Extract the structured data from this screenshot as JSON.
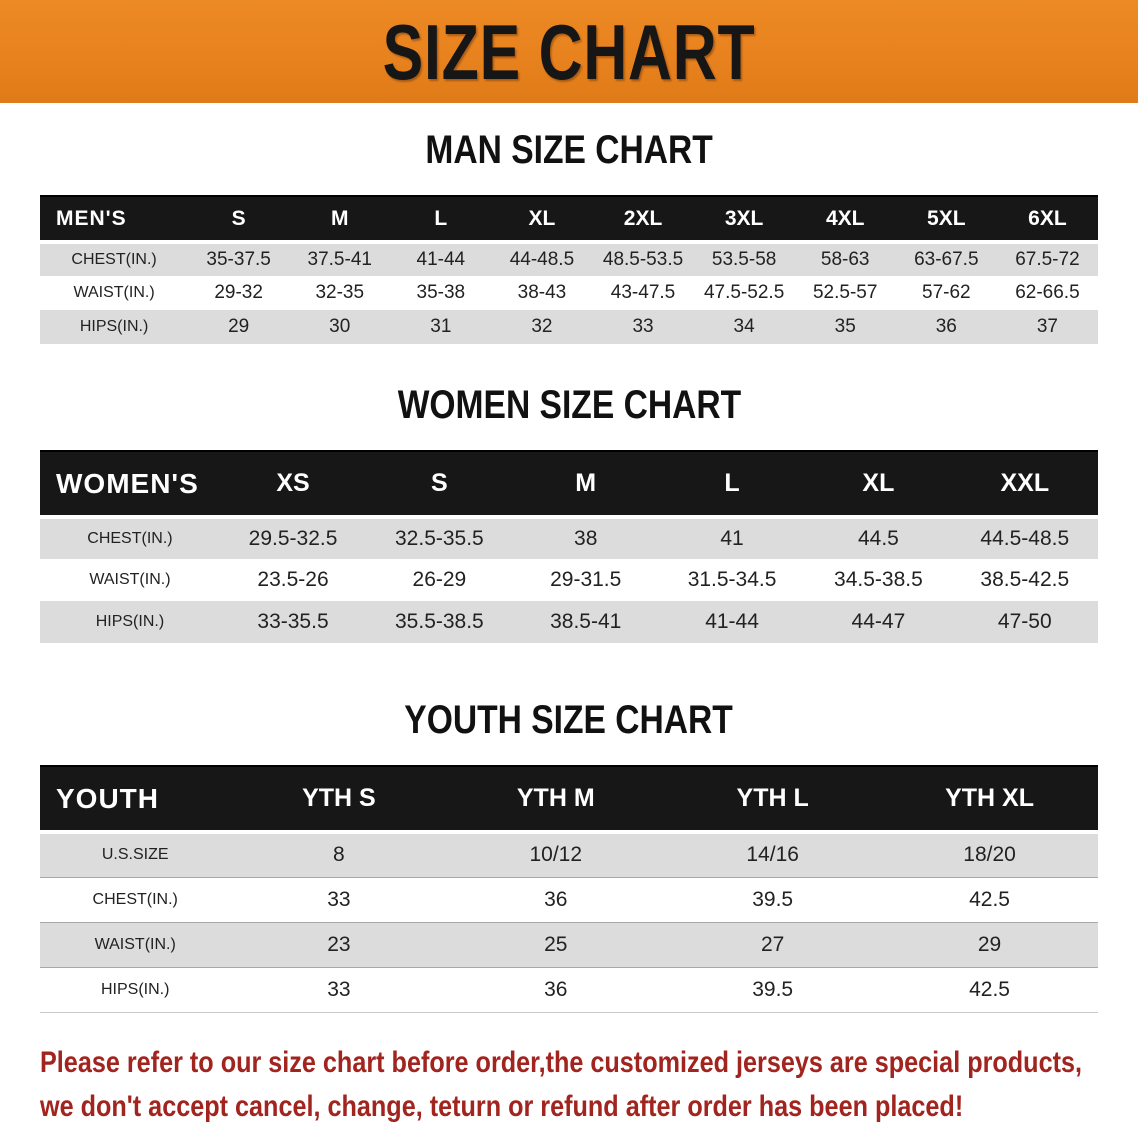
{
  "banner": {
    "title": "SIZE CHART",
    "bg_color": "#E8821E",
    "text_color": "#161616"
  },
  "sections": {
    "men": {
      "heading": "MAN SIZE CHART",
      "table": {
        "columns": [
          "MEN'S",
          "S",
          "M",
          "L",
          "XL",
          "2XL",
          "3XL",
          "4XL",
          "5XL",
          "6XL"
        ],
        "rows": [
          {
            "label": "CHEST(IN.)",
            "values": [
              "35-37.5",
              "37.5-41",
              "41-44",
              "44-48.5",
              "48.5-53.5",
              "53.5-58",
              "58-63",
              "63-67.5",
              "67.5-72"
            ]
          },
          {
            "label": "WAIST(IN.)",
            "values": [
              "29-32",
              "32-35",
              "35-38",
              "38-43",
              "43-47.5",
              "47.5-52.5",
              "52.5-57",
              "57-62",
              "62-66.5"
            ]
          },
          {
            "label": "HIPS(IN.)",
            "values": [
              "29",
              "30",
              "31",
              "32",
              "33",
              "34",
              "35",
              "36",
              "37"
            ]
          }
        ]
      }
    },
    "women": {
      "heading": "WOMEN SIZE CHART",
      "table": {
        "columns": [
          "WOMEN'S",
          "XS",
          "S",
          "M",
          "L",
          "XL",
          "XXL"
        ],
        "rows": [
          {
            "label": "CHEST(IN.)",
            "values": [
              "29.5-32.5",
              "32.5-35.5",
              "38",
              "41",
              "44.5",
              "44.5-48.5"
            ]
          },
          {
            "label": "WAIST(IN.)",
            "values": [
              "23.5-26",
              "26-29",
              "29-31.5",
              "31.5-34.5",
              "34.5-38.5",
              "38.5-42.5"
            ]
          },
          {
            "label": "HIPS(IN.)",
            "values": [
              "33-35.5",
              "35.5-38.5",
              "38.5-41",
              "41-44",
              "44-47",
              "47-50"
            ]
          }
        ]
      }
    },
    "youth": {
      "heading": "YOUTH SIZE CHART",
      "table": {
        "columns": [
          "YOUTH",
          "YTH S",
          "YTH M",
          "YTH L",
          "YTH XL"
        ],
        "rows": [
          {
            "label": "U.S.SIZE",
            "values": [
              "8",
              "10/12",
              "14/16",
              "18/20"
            ]
          },
          {
            "label": "CHEST(IN.)",
            "values": [
              "33",
              "36",
              "39.5",
              "42.5"
            ]
          },
          {
            "label": "WAIST(IN.)",
            "values": [
              "23",
              "25",
              "27",
              "29"
            ]
          },
          {
            "label": "HIPS(IN.)",
            "values": [
              "33",
              "36",
              "39.5",
              "42.5"
            ]
          }
        ]
      }
    }
  },
  "disclaimer": {
    "line1": "Please refer to our size chart before order,the customized jerseys are special products,",
    "line2": "we don't accept cancel, change, teturn or refund after order has been placed!",
    "text_color": "#A2241E"
  }
}
